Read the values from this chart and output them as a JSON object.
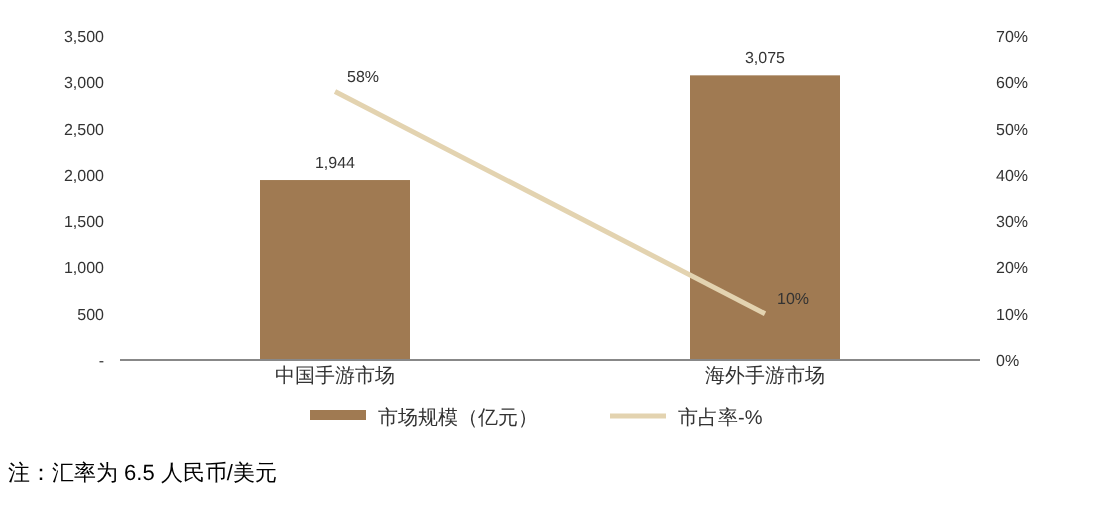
{
  "chart_data": {
    "type": "bar",
    "categories": [
      "中国手游市场",
      "海外手游市场"
    ],
    "series": [
      {
        "name": "市场规模（亿元）",
        "color": "#a07a52",
        "values": [
          1944,
          3075
        ],
        "value_labels": [
          "1,944",
          "3,075"
        ]
      },
      {
        "name": "市占率-%",
        "type": "line",
        "axis": "y2",
        "color": "#e3d3b0",
        "values": [
          58,
          10
        ],
        "value_labels": [
          "58%",
          "10%"
        ]
      }
    ],
    "ylim": [
      0,
      3500
    ],
    "yticks": [
      {
        "value": 0,
        "label": "-"
      },
      {
        "value": 500,
        "label": "500"
      },
      {
        "value": 1000,
        "label": "1,000"
      },
      {
        "value": 1500,
        "label": "1,500"
      },
      {
        "value": 2000,
        "label": "2,000"
      },
      {
        "value": 2500,
        "label": "2,500"
      },
      {
        "value": 3000,
        "label": "3,000"
      },
      {
        "value": 3500,
        "label": "3,500"
      }
    ],
    "y2lim": [
      0,
      70
    ],
    "y2ticks": [
      {
        "value": 0,
        "label": "0%"
      },
      {
        "value": 10,
        "label": "10%"
      },
      {
        "value": 20,
        "label": "20%"
      },
      {
        "value": 30,
        "label": "30%"
      },
      {
        "value": 40,
        "label": "40%"
      },
      {
        "value": 50,
        "label": "50%"
      },
      {
        "value": 60,
        "label": "60%"
      },
      {
        "value": 70,
        "label": "70%"
      }
    ],
    "grid": false,
    "legend": "bottom",
    "annotations": [
      "注：汇率为 6.5 人民币/美元"
    ]
  }
}
